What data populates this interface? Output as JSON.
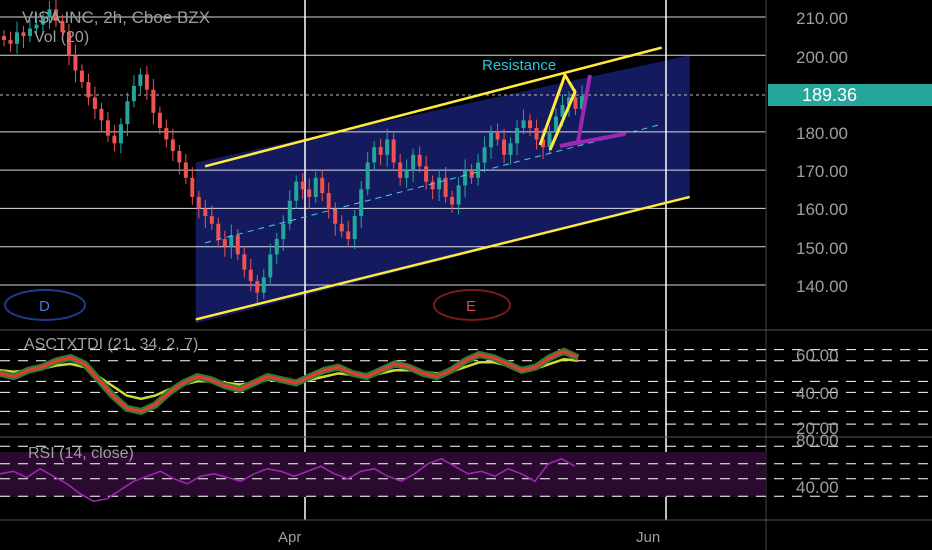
{
  "header": {
    "symbol_title": "VISA INC, 2h, Cboe BZX",
    "volume_label": "Vol (20)"
  },
  "annotations": {
    "resistance": "Resistance",
    "wave_d": "D",
    "wave_e": "E"
  },
  "price_axis": {
    "ticks": [
      "210.00",
      "200.00",
      "190.00",
      "180.00",
      "170.00",
      "160.00",
      "150.00",
      "140.00"
    ],
    "last_price": "189.36"
  },
  "adx_panel": {
    "title": "ASCTXTDI (21, 34, 2, 7)",
    "ticks": [
      "60.00",
      "40.00",
      "20.00"
    ]
  },
  "rsi_panel": {
    "title": "RSI (14, close)",
    "ticks": [
      "80.00",
      "40.00"
    ]
  },
  "time_axis": {
    "labels": [
      "Apr",
      "Jun"
    ]
  },
  "colors": {
    "background": "#000000",
    "up_candle": "#26a69a",
    "down_candle": "#ef5350",
    "channel": "#ffeb3b",
    "channel_fill": "#1a237e",
    "resistance_text": "#26c6da",
    "pattern_purple": "#9c27b0",
    "last_price_badge": "#26a69a",
    "rsi_line": "#9c27b0",
    "rsi_band": "#2a0a2e",
    "adx_red": "#e53935",
    "adx_green": "#2e7d32",
    "adx_yellow": "#cddc39"
  },
  "chart_data": {
    "type": "candlestick",
    "title": "VISA INC, 2h, Cboe BZX",
    "ylim": [
      130,
      215
    ],
    "candles_start_index": 0,
    "close_path": [
      204,
      203,
      206,
      205,
      207,
      208,
      210,
      212,
      209,
      206,
      200,
      196,
      193,
      189,
      186,
      183,
      179,
      177,
      182,
      188,
      192,
      195,
      191,
      185,
      181,
      178,
      175,
      172,
      168,
      163,
      160,
      158,
      156,
      152,
      150,
      153,
      148,
      144,
      141,
      138,
      142,
      148,
      152,
      156,
      162,
      167,
      165,
      163,
      168,
      164,
      160,
      156,
      154,
      152,
      158,
      165,
      172,
      176,
      174,
      178,
      172,
      168,
      170,
      174,
      171,
      167,
      165,
      168,
      163,
      161,
      166,
      170,
      168,
      172,
      176,
      180,
      178,
      174,
      177,
      181,
      183,
      181,
      178,
      176,
      180,
      184,
      187,
      189,
      186,
      189.36
    ],
    "resistance_level": 190,
    "channel": {
      "upper": [
        {
          "x": 0.22,
          "y": 171
        },
        {
          "x": 0.71,
          "y": 202
        }
      ],
      "lower": [
        {
          "x": 0.21,
          "y": 131
        },
        {
          "x": 0.74,
          "y": 163
        }
      ],
      "mid": [
        {
          "x": 0.22,
          "y": 151
        },
        {
          "x": 0.71,
          "y": 182
        }
      ]
    },
    "adx": {
      "ylim": [
        15,
        75
      ],
      "red": [
        52,
        50,
        54,
        56,
        60,
        62,
        58,
        48,
        38,
        30,
        28,
        32,
        40,
        46,
        50,
        48,
        44,
        42,
        46,
        50,
        48,
        46,
        50,
        54,
        56,
        52,
        50,
        54,
        58,
        56,
        52,
        50,
        54,
        60,
        64,
        62,
        58,
        54,
        56,
        62,
        66,
        62
      ],
      "yellow": [
        54,
        53,
        54,
        55,
        57,
        58,
        56,
        50,
        44,
        38,
        36,
        38,
        42,
        45,
        47,
        47,
        46,
        45,
        46,
        48,
        48,
        47,
        48,
        50,
        52,
        51,
        50,
        52,
        54,
        54,
        53,
        52,
        53,
        56,
        59,
        59,
        57,
        55,
        55,
        58,
        61,
        60
      ]
    },
    "rsi": {
      "ylim": [
        25,
        85
      ],
      "values": [
        58,
        60,
        55,
        62,
        56,
        50,
        42,
        36,
        38,
        45,
        52,
        56,
        60,
        54,
        50,
        56,
        58,
        55,
        52,
        58,
        62,
        60,
        56,
        60,
        64,
        58,
        54,
        60,
        62,
        56,
        52,
        58,
        66,
        70,
        64,
        58,
        60,
        56,
        62,
        58,
        52,
        66,
        70,
        64
      ]
    }
  }
}
